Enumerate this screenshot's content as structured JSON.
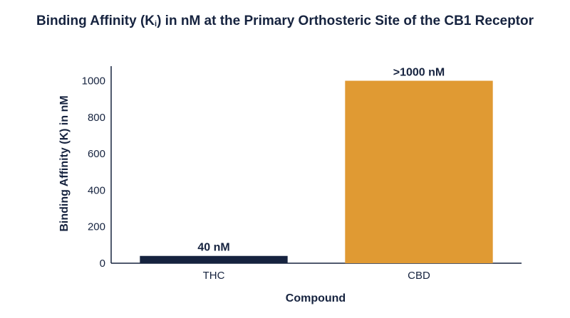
{
  "chart_data": {
    "type": "bar",
    "title": {
      "prefix": "Binding Affinity (K",
      "subscript": "i",
      "suffix": ") in nM at the Primary Orthosteric Site of the CB1 Receptor"
    },
    "xlabel": "Compound",
    "ylabel": "Binding Affinity (K) in nM",
    "categories": [
      "THC",
      "CBD"
    ],
    "values": [
      40,
      1000
    ],
    "data_labels": [
      "40 nM",
      ">1000 nM"
    ],
    "colors": [
      "#16233f",
      "#e09a33"
    ],
    "ylim": [
      0,
      1080
    ],
    "yticks": [
      0,
      200,
      400,
      600,
      800,
      1000
    ],
    "grid": false,
    "legend": "none"
  }
}
